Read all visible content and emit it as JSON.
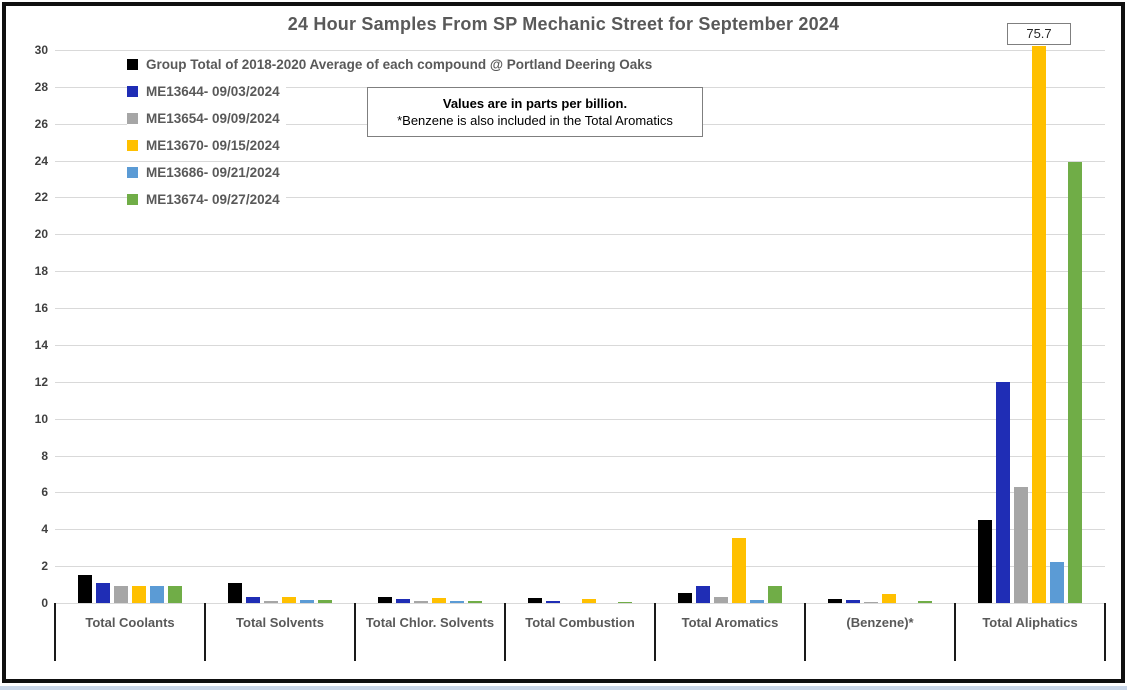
{
  "chart_data": {
    "type": "bar",
    "title": "24 Hour Samples From SP Mechanic Street for September 2024",
    "note_line1": "Values are in parts per billion.",
    "note_line2": "*Benzene is also included in the Total Aromatics",
    "xlabel": "",
    "ylabel": "",
    "ylim": [
      0,
      30
    ],
    "ytick_step": 2,
    "grid": "horizontal",
    "legend_position": "top-left",
    "grid_color": "#d9d9d9",
    "categories": [
      "Total Coolants",
      "Total Solvents",
      "Total Chlor. Solvents",
      "Total Combustion",
      "Total Aromatics",
      "(Benzene)*",
      "Total Aliphatics"
    ],
    "series": [
      {
        "name": "Group Total of 2018-2020 Average of each compound @ Portland Deering Oaks",
        "color": "#000000",
        "values": [
          1.5,
          1.1,
          0.3,
          0.25,
          0.55,
          0.2,
          4.5
        ]
      },
      {
        "name": "ME13644- 09/03/2024",
        "color": "#1f2db5",
        "values": [
          1.1,
          0.35,
          0.2,
          0.1,
          0.9,
          0.15,
          12.0
        ]
      },
      {
        "name": "ME13654- 09/09/2024",
        "color": "#a6a6a6",
        "values": [
          0.95,
          0.1,
          0.1,
          0,
          0.35,
          0.05,
          6.3
        ]
      },
      {
        "name": "ME13670- 09/15/2024",
        "color": "#ffc000",
        "values": [
          0.9,
          0.3,
          0.25,
          0.2,
          3.5,
          0.5,
          75.7
        ]
      },
      {
        "name": "ME13686- 09/21/2024",
        "color": "#5b9bd5",
        "values": [
          0.95,
          0.15,
          0.1,
          0,
          0.15,
          0,
          2.2
        ]
      },
      {
        "name": "ME13674- 09/27/2024",
        "color": "#70ad47",
        "values": [
          0.95,
          0.15,
          0.1,
          0.05,
          0.95,
          0.1,
          23.9
        ]
      }
    ],
    "annotations": [
      {
        "text": "75.7",
        "category_index": 6,
        "series_index": 3
      }
    ]
  }
}
